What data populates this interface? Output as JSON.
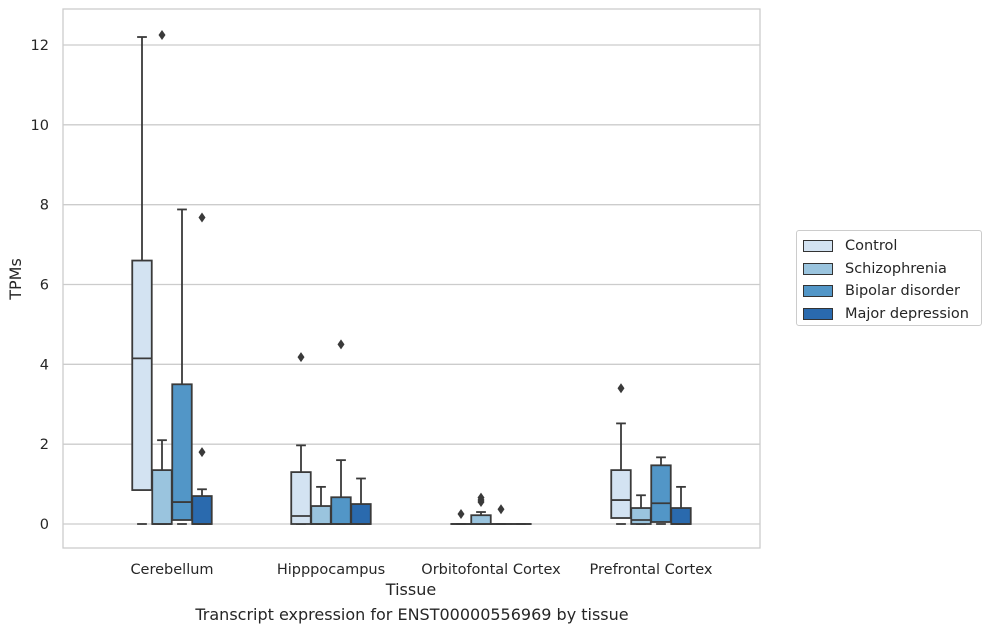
{
  "chart_data": {
    "type": "box",
    "title": "",
    "xlabel": "Tissue",
    "ylabel": "TPMs",
    "ylim": [
      -0.6,
      12.9
    ],
    "yticks": [
      "0",
      "2",
      "4",
      "6",
      "8",
      "10",
      "12"
    ],
    "grid": "horizontal",
    "legend_position": "right",
    "caption": "Transcript expression for ENST00000556969 by tissue",
    "categories": [
      "Cerebellum",
      "Hipppocampus",
      "Orbitofontal Cortex",
      "Prefrontal Cortex"
    ],
    "series": [
      {
        "name": "Control",
        "color": "#d3e3f2",
        "boxes": [
          {
            "whisker_low": 0,
            "q1": 0.85,
            "median": 4.15,
            "q3": 6.6,
            "whisker_high": 12.2,
            "outliers": []
          },
          {
            "whisker_low": 0,
            "q1": 0,
            "median": 0.2,
            "q3": 1.3,
            "whisker_high": 1.97,
            "outliers": [
              4.18
            ]
          },
          {
            "whisker_low": 0,
            "q1": 0,
            "median": 0,
            "q3": 0,
            "whisker_high": 0,
            "outliers": [
              0.25
            ]
          },
          {
            "whisker_low": 0,
            "q1": 0.15,
            "median": 0.6,
            "q3": 1.35,
            "whisker_high": 2.52,
            "outliers": [
              3.4
            ]
          }
        ]
      },
      {
        "name": "Schizophrenia",
        "color": "#9ac4de",
        "boxes": [
          {
            "whisker_low": 0,
            "q1": 0,
            "median": 0,
            "q3": 1.35,
            "whisker_high": 2.1,
            "outliers": [
              12.25
            ]
          },
          {
            "whisker_low": 0,
            "q1": 0,
            "median": 0,
            "q3": 0.45,
            "whisker_high": 0.93,
            "outliers": []
          },
          {
            "whisker_low": 0,
            "q1": 0,
            "median": 0,
            "q3": 0.22,
            "whisker_high": 0.3,
            "outliers": [
              0.55,
              0.6,
              0.66
            ]
          },
          {
            "whisker_low": 0,
            "q1": 0,
            "median": 0.1,
            "q3": 0.4,
            "whisker_high": 0.72,
            "outliers": []
          }
        ]
      },
      {
        "name": "Bipolar disorder",
        "color": "#5296c7",
        "boxes": [
          {
            "whisker_low": 0,
            "q1": 0.1,
            "median": 0.55,
            "q3": 3.5,
            "whisker_high": 7.88,
            "outliers": []
          },
          {
            "whisker_low": 0,
            "q1": 0,
            "median": 0,
            "q3": 0.67,
            "whisker_high": 1.6,
            "outliers": [
              4.5
            ]
          },
          {
            "whisker_low": 0,
            "q1": 0,
            "median": 0,
            "q3": 0,
            "whisker_high": 0,
            "outliers": [
              0.37
            ]
          },
          {
            "whisker_low": 0,
            "q1": 0.05,
            "median": 0.52,
            "q3": 1.47,
            "whisker_high": 1.67,
            "outliers": []
          }
        ]
      },
      {
        "name": "Major depression",
        "color": "#2a6aae",
        "boxes": [
          {
            "whisker_low": 0,
            "q1": 0,
            "median": 0,
            "q3": 0.7,
            "whisker_high": 0.87,
            "outliers": [
              7.68,
              1.8
            ]
          },
          {
            "whisker_low": 0,
            "q1": 0,
            "median": 0,
            "q3": 0.5,
            "whisker_high": 1.14,
            "outliers": []
          },
          {
            "whisker_low": 0,
            "q1": 0,
            "median": 0,
            "q3": 0,
            "whisker_high": 0,
            "outliers": []
          },
          {
            "whisker_low": 0,
            "q1": 0,
            "median": 0,
            "q3": 0.4,
            "whisker_high": 0.93,
            "outliers": []
          }
        ]
      }
    ]
  }
}
